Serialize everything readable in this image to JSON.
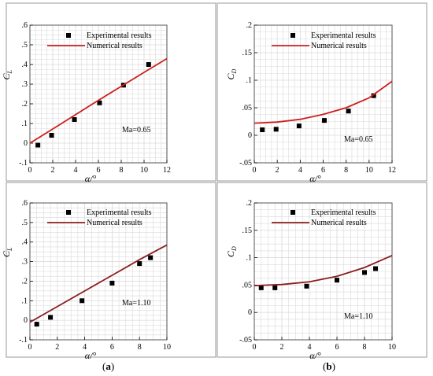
{
  "captions": {
    "a": {
      "open": "(",
      "letter": "a",
      "close": ")"
    },
    "b": {
      "open": "(",
      "letter": "b",
      "close": ")"
    }
  },
  "colors": {
    "grid": "#d9d9d9",
    "frame": "#555555",
    "panel_border": "#9a9a9a",
    "marker": "#000000"
  },
  "chart_data": [
    {
      "id": "cl-065",
      "type": "scatter",
      "ylabel_main": "C",
      "ylabel_sub": "L",
      "xlabel": "α/°",
      "xlim": [
        0,
        12
      ],
      "ylim": [
        -0.1,
        0.6
      ],
      "xticks": [
        0,
        2,
        4,
        6,
        8,
        10,
        12
      ],
      "yticks": [
        -0.1,
        0,
        0.1,
        0.2,
        0.3,
        0.4,
        0.5,
        0.6
      ],
      "annotation": "Ma=0.65",
      "grid": true,
      "series": [
        {
          "name": "Experimental results",
          "kind": "markers",
          "x": [
            0.7,
            1.9,
            3.9,
            6.1,
            8.2,
            10.4
          ],
          "y": [
            -0.01,
            0.04,
            0.12,
            0.205,
            0.295,
            0.4
          ]
        },
        {
          "name": "Numerical results",
          "kind": "line",
          "color": "#cc1f1f",
          "x": [
            0,
            2,
            4,
            6,
            8,
            10,
            12
          ],
          "y": [
            0.0,
            0.072,
            0.145,
            0.218,
            0.289,
            0.36,
            0.43
          ]
        }
      ]
    },
    {
      "id": "cd-065",
      "type": "scatter",
      "ylabel_main": "C",
      "ylabel_sub": "D",
      "xlabel": "α/°",
      "xlim": [
        0,
        12
      ],
      "ylim": [
        -0.05,
        0.2
      ],
      "xticks": [
        0,
        2,
        4,
        6,
        8,
        10,
        12
      ],
      "yticks": [
        -0.05,
        0,
        0.05,
        0.1,
        0.15,
        0.2
      ],
      "annotation": "Ma=0.65",
      "grid": true,
      "series": [
        {
          "name": "Experimental results",
          "kind": "markers",
          "x": [
            0.7,
            1.9,
            3.9,
            6.1,
            8.2,
            10.4
          ],
          "y": [
            0.01,
            0.011,
            0.017,
            0.027,
            0.044,
            0.072
          ]
        },
        {
          "name": "Numerical results",
          "kind": "line",
          "color": "#cc1f1f",
          "x": [
            0,
            2,
            4,
            6,
            8,
            10,
            12
          ],
          "y": [
            0.022,
            0.024,
            0.029,
            0.038,
            0.05,
            0.068,
            0.098
          ]
        }
      ]
    },
    {
      "id": "cl-110",
      "type": "scatter",
      "ylabel_main": "C",
      "ylabel_sub": "L",
      "xlabel": "α/°",
      "xlim": [
        0,
        10
      ],
      "ylim": [
        -0.1,
        0.6
      ],
      "xticks": [
        0,
        2,
        4,
        6,
        8,
        10
      ],
      "yticks": [
        -0.1,
        0,
        0.1,
        0.2,
        0.3,
        0.4,
        0.5,
        0.6
      ],
      "annotation": "Ma=1.10",
      "grid": true,
      "series": [
        {
          "name": "Experimental results",
          "kind": "markers",
          "x": [
            0.5,
            1.5,
            3.8,
            6.0,
            8.0,
            8.8
          ],
          "y": [
            -0.02,
            0.015,
            0.1,
            0.19,
            0.29,
            0.32
          ]
        },
        {
          "name": "Numerical results",
          "kind": "line",
          "color": "#8b1e1e",
          "x": [
            0,
            2,
            4,
            6,
            8,
            10
          ],
          "y": [
            -0.01,
            0.07,
            0.15,
            0.23,
            0.31,
            0.385
          ]
        }
      ]
    },
    {
      "id": "cd-110",
      "type": "scatter",
      "ylabel_main": "C",
      "ylabel_sub": "D",
      "xlabel": "α/°",
      "xlim": [
        0,
        10
      ],
      "ylim": [
        -0.05,
        0.2
      ],
      "xticks": [
        0,
        2,
        4,
        6,
        8,
        10
      ],
      "yticks": [
        -0.05,
        0,
        0.05,
        0.1,
        0.15,
        0.2
      ],
      "annotation": "Ma=1.10",
      "grid": true,
      "series": [
        {
          "name": "Experimental results",
          "kind": "markers",
          "x": [
            0.5,
            1.5,
            3.8,
            6.0,
            8.0,
            8.8
          ],
          "y": [
            0.045,
            0.045,
            0.048,
            0.059,
            0.073,
            0.08
          ]
        },
        {
          "name": "Numerical results",
          "kind": "line",
          "color": "#8b1e1e",
          "x": [
            0,
            2,
            4,
            6,
            8,
            10
          ],
          "y": [
            0.049,
            0.051,
            0.056,
            0.066,
            0.082,
            0.104
          ]
        }
      ]
    }
  ]
}
